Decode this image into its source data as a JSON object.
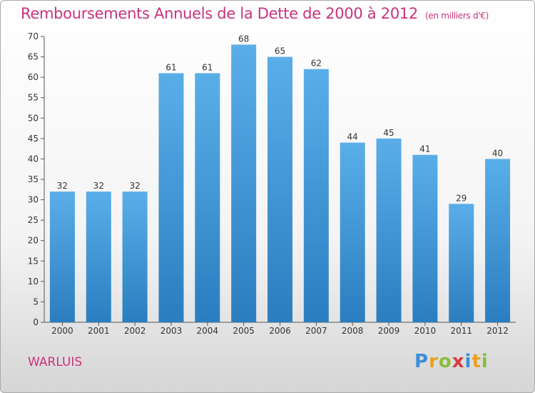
{
  "header": {
    "title": "Remboursements Annuels de la Dette de 2000 à 2012",
    "unit": "(en milliers d'€)"
  },
  "footer": {
    "commune": "WARLUIS",
    "logo": "Proxiti"
  },
  "colors": {
    "bar_light": "#5aaee8",
    "bar_dark": "#2a7ec0",
    "title": "#c8337c"
  },
  "chart_data": {
    "type": "bar",
    "title": "Remboursements Annuels de la Dette de 2000 à 2012",
    "xlabel": "",
    "ylabel": "",
    "categories": [
      "2000",
      "2001",
      "2002",
      "2003",
      "2004",
      "2005",
      "2006",
      "2007",
      "2008",
      "2009",
      "2010",
      "2011",
      "2012"
    ],
    "values": [
      32,
      32,
      32,
      61,
      61,
      68,
      65,
      62,
      44,
      45,
      41,
      29,
      40
    ],
    "ylim": [
      0,
      70
    ],
    "yticks": [
      0,
      5,
      10,
      15,
      20,
      25,
      30,
      35,
      40,
      45,
      50,
      55,
      60,
      65,
      70
    ],
    "grid": false,
    "data_labels": true
  }
}
